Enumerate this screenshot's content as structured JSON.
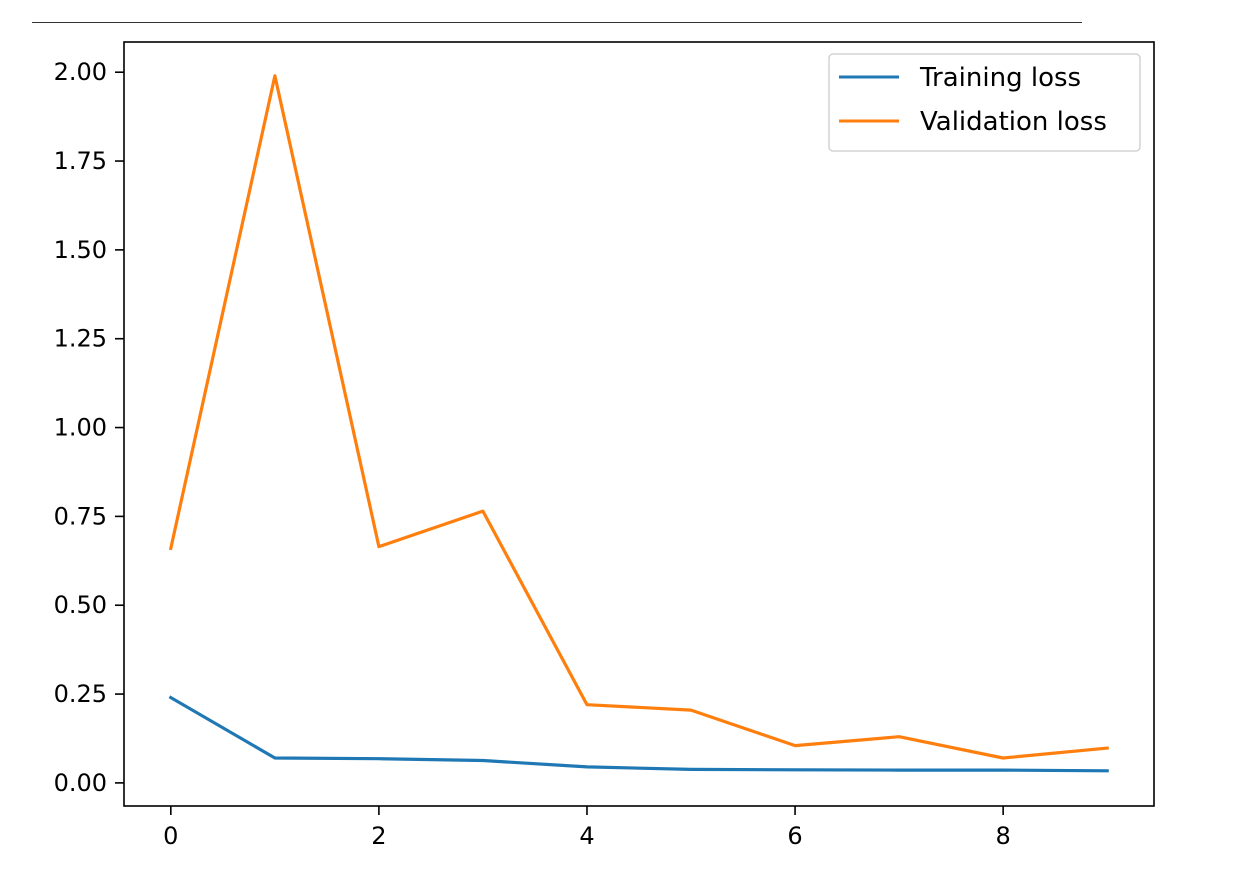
{
  "chart_data": {
    "type": "line",
    "title": "",
    "xlabel": "",
    "ylabel": "",
    "x": [
      0,
      1,
      2,
      3,
      4,
      5,
      6,
      7,
      8,
      9
    ],
    "xlim": [
      -0.45,
      9.45
    ],
    "ylim": [
      -0.065,
      2.085
    ],
    "xticks": [
      0,
      2,
      4,
      6,
      8
    ],
    "yticks": [
      0.0,
      0.25,
      0.5,
      0.75,
      1.0,
      1.25,
      1.5,
      1.75,
      2.0
    ],
    "xtick_labels": [
      "0",
      "2",
      "4",
      "6",
      "8"
    ],
    "ytick_labels": [
      "0.00",
      "0.25",
      "0.50",
      "0.75",
      "1.00",
      "1.25",
      "1.50",
      "1.75",
      "2.00"
    ],
    "grid": false,
    "legend_position": "top-right",
    "series": [
      {
        "name": "Training loss",
        "color": "#1f77b4",
        "values": [
          0.24,
          0.07,
          0.068,
          0.063,
          0.045,
          0.038,
          0.037,
          0.036,
          0.036,
          0.034
        ]
      },
      {
        "name": "Validation loss",
        "color": "#ff7f0e",
        "values": [
          0.66,
          1.99,
          0.665,
          0.765,
          0.22,
          0.205,
          0.105,
          0.13,
          0.07,
          0.098
        ]
      }
    ]
  }
}
